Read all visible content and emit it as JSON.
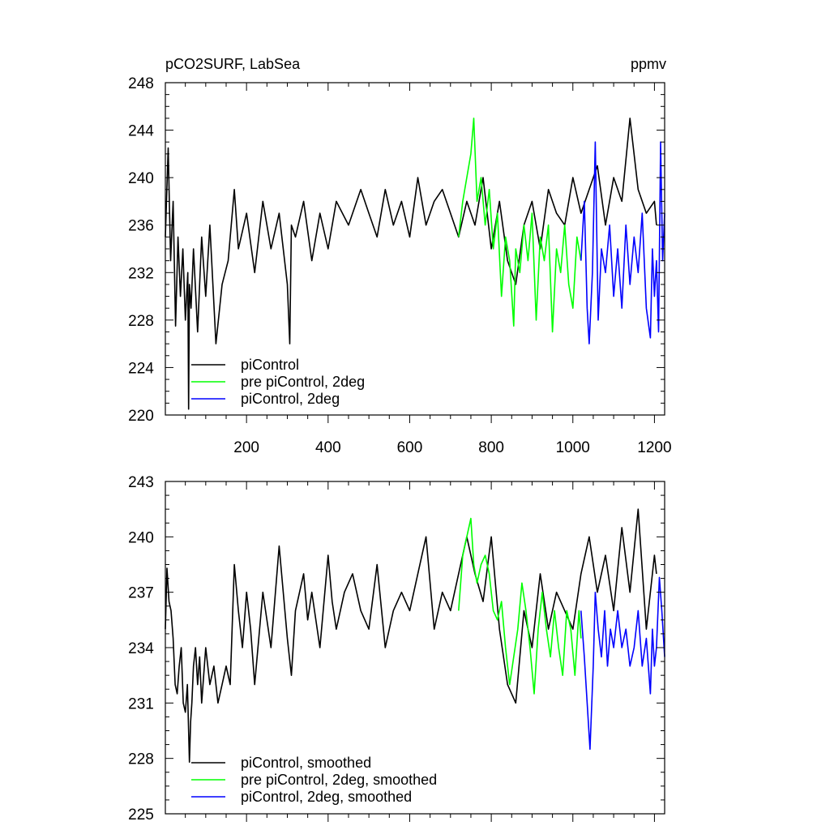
{
  "chart_data": [
    {
      "type": "line",
      "title": "pCO2SURF, LabSea",
      "units_label": "ppmv",
      "xlim": [
        1,
        1225
      ],
      "ylim": [
        220,
        248
      ],
      "yticks": [
        220,
        224,
        228,
        232,
        236,
        240,
        244,
        248
      ],
      "xticks": [
        200,
        400,
        600,
        800,
        1000,
        1200
      ],
      "legend_position": "bottom-left",
      "series": [
        {
          "name": "piControl",
          "color": "#000000",
          "x": [
            1,
            8,
            14,
            20,
            26,
            32,
            38,
            44,
            50,
            56,
            58,
            60,
            64,
            70,
            80,
            90,
            100,
            110,
            125,
            140,
            155,
            170,
            180,
            200,
            220,
            240,
            260,
            280,
            300,
            306,
            310,
            320,
            340,
            360,
            380,
            400,
            420,
            450,
            480,
            500,
            520,
            540,
            560,
            580,
            600,
            620,
            640,
            660,
            680,
            700,
            720,
            740,
            760,
            780,
            800,
            820,
            840,
            860,
            880,
            900,
            920,
            940,
            960,
            980,
            1000,
            1020,
            1040,
            1060,
            1080,
            1100,
            1120,
            1140,
            1160,
            1180,
            1200,
            1205
          ],
          "values": [
            235,
            242.5,
            233,
            238,
            227.5,
            235,
            230,
            234,
            228,
            232,
            220.5,
            231,
            229,
            234,
            227,
            235,
            230,
            236,
            226,
            231,
            233,
            239,
            234,
            237,
            232,
            238,
            234,
            237,
            231,
            226,
            236,
            235,
            238,
            233,
            237,
            234,
            238,
            236,
            239,
            237,
            235,
            239,
            236,
            238,
            235,
            240,
            236,
            238,
            239,
            237,
            235,
            238,
            236,
            240,
            234,
            238,
            233,
            231,
            236,
            238,
            234,
            239,
            237,
            236,
            240,
            237,
            239,
            241,
            236,
            240,
            238,
            245,
            239,
            237,
            238,
            236
          ]
        },
        {
          "name": "pre piControl, 2deg",
          "color": "#00ff00",
          "x": [
            720,
            730,
            740,
            750,
            757,
            765,
            775,
            785,
            795,
            805,
            815,
            825,
            835,
            845,
            855,
            860,
            870,
            880,
            890,
            900,
            910,
            920,
            930,
            940,
            950,
            960,
            970,
            980,
            990,
            1000,
            1010,
            1020
          ],
          "values": [
            235,
            238,
            240,
            242,
            245,
            238,
            240,
            236,
            239,
            234,
            237,
            230,
            235,
            233,
            227.5,
            234,
            232,
            236,
            233,
            237,
            228,
            235,
            233,
            236,
            227,
            234,
            232,
            236,
            231,
            229,
            235,
            233
          ]
        },
        {
          "name": "piControl, 2deg",
          "color": "#0000ff",
          "x": [
            1020,
            1028,
            1035,
            1040,
            1048,
            1055,
            1062,
            1070,
            1080,
            1090,
            1100,
            1110,
            1120,
            1130,
            1140,
            1150,
            1160,
            1170,
            1180,
            1190,
            1195,
            1200,
            1205,
            1210,
            1215,
            1220,
            1225
          ],
          "values": [
            233,
            238,
            229,
            226,
            232,
            243,
            228,
            234,
            232,
            236,
            230,
            234,
            229,
            236,
            231,
            235,
            232,
            237,
            229,
            226.5,
            234,
            230,
            233,
            227,
            243,
            233,
            237
          ]
        }
      ]
    },
    {
      "type": "line",
      "xlim": [
        1,
        1225
      ],
      "ylim": [
        225,
        243
      ],
      "yticks": [
        225,
        228,
        231,
        234,
        237,
        240,
        243
      ],
      "legend_position": "bottom-left",
      "series": [
        {
          "name": "piControl, smoothed",
          "color": "#000000",
          "x": [
            1,
            5,
            10,
            15,
            20,
            25,
            30,
            35,
            40,
            45,
            50,
            55,
            60,
            63,
            66,
            70,
            75,
            80,
            85,
            90,
            95,
            100,
            110,
            120,
            130,
            140,
            150,
            160,
            170,
            180,
            190,
            200,
            210,
            220,
            240,
            260,
            280,
            300,
            310,
            320,
            340,
            350,
            360,
            380,
            400,
            410,
            420,
            440,
            460,
            480,
            500,
            520,
            540,
            560,
            580,
            600,
            620,
            640,
            660,
            680,
            700,
            720,
            740,
            760,
            780,
            800,
            820,
            840,
            860,
            880,
            900,
            920,
            940,
            960,
            980,
            1000,
            1020,
            1040,
            1060,
            1080,
            1100,
            1120,
            1140,
            1160,
            1180,
            1200,
            1205
          ],
          "values": [
            235,
            238.3,
            236.5,
            236,
            234.5,
            232,
            231.5,
            233,
            234,
            231,
            230.5,
            232,
            227.8,
            230,
            231,
            233,
            234,
            232,
            233.5,
            231,
            232.5,
            234,
            232,
            233,
            231,
            232,
            233,
            232,
            238.5,
            236,
            234,
            237,
            235,
            232,
            237,
            234,
            239.5,
            234.5,
            232.5,
            236,
            238,
            235.5,
            237,
            234,
            239,
            236.5,
            235,
            237,
            238,
            236,
            235,
            238.5,
            234,
            236,
            237,
            236,
            238,
            240,
            235,
            237,
            236,
            238,
            240,
            238,
            236.5,
            240,
            235,
            232,
            231,
            236,
            234,
            238,
            235,
            237,
            236,
            235,
            238,
            240,
            237,
            239,
            236,
            240.5,
            237,
            241.5,
            235,
            239,
            238
          ]
        },
        {
          "name": "pre piControl, 2deg, smoothed",
          "color": "#00ff00",
          "x": [
            720,
            730,
            740,
            750,
            757,
            765,
            775,
            785,
            795,
            805,
            815,
            825,
            835,
            845,
            855,
            865,
            875,
            885,
            895,
            905,
            915,
            925,
            935,
            945,
            955,
            965,
            975,
            985,
            995,
            1005,
            1015,
            1020
          ],
          "values": [
            236,
            239,
            240,
            241,
            238.5,
            237.5,
            238.5,
            239,
            238,
            236,
            235.5,
            236.5,
            234,
            232,
            233.5,
            235,
            237.5,
            236,
            234,
            231.5,
            235,
            237,
            235,
            233.5,
            236,
            234,
            232.5,
            236,
            235,
            232.5,
            236,
            234.5
          ]
        },
        {
          "name": "piControl, 2deg, smoothed",
          "color": "#0000ff",
          "x": [
            1020,
            1028,
            1035,
            1042,
            1050,
            1055,
            1062,
            1070,
            1078,
            1085,
            1092,
            1100,
            1110,
            1120,
            1130,
            1140,
            1150,
            1160,
            1170,
            1180,
            1190,
            1195,
            1200,
            1205,
            1212,
            1218,
            1225
          ],
          "values": [
            236,
            233.5,
            231,
            228.5,
            233,
            237,
            235,
            233.5,
            236,
            233,
            235,
            234,
            236,
            234,
            235,
            233,
            234,
            236,
            233,
            234.5,
            231.5,
            235,
            233,
            234,
            237.8,
            236,
            233.5
          ]
        }
      ]
    }
  ]
}
